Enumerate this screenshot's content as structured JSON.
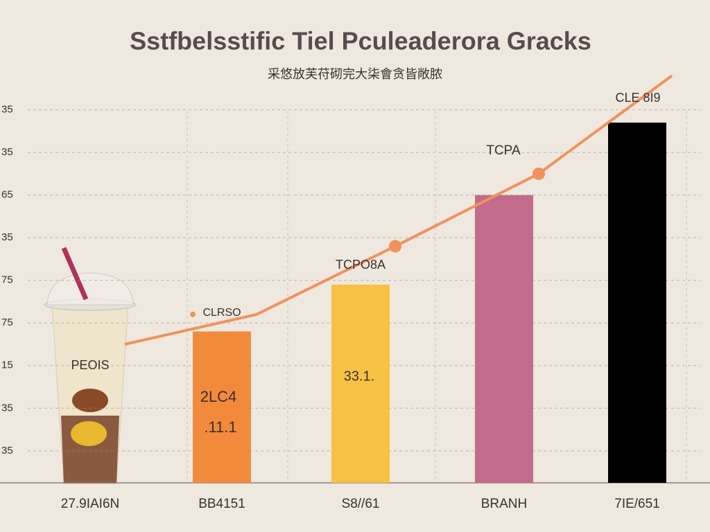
{
  "chart_data": {
    "type": "bar",
    "title": "Sstfbelsstific Tiel Pculeaderora Gracks",
    "subtitle": "采悠放芙苻砌完大柒會贪皆敞脓",
    "categories": [
      "27.9IAI6N",
      "BB4151",
      "S8//61",
      "BRANH",
      "7IE/651"
    ],
    "series": [
      {
        "type": "bar",
        "colors": [
          "#e8646c",
          "#f28a3c",
          "#f6c244",
          "#c26c8c"
        ],
        "values": [
          null,
          3.8,
          4.9,
          7.0,
          8.7
        ]
      },
      {
        "type": "line",
        "color": "#f0925c",
        "values": [
          3.5,
          4.2,
          5.8,
          7.5,
          9.8
        ]
      }
    ],
    "annotations": [
      "CLRSO",
      "2LC4",
      ".11.1",
      "TCPO8A",
      "33.1.",
      "TCPA",
      "CLE 8I9",
      "PEOIS"
    ],
    "ylim": [
      0.25,
      10
    ],
    "yticks": [
      {
        "value": 1,
        "label": "35"
      },
      {
        "value": 2,
        "label": "35"
      },
      {
        "value": 3,
        "label": "15"
      },
      {
        "value": 4,
        "label": "75"
      },
      {
        "value": 5,
        "label": "75"
      },
      {
        "value": 6,
        "label": "35"
      },
      {
        "value": 7,
        "label": "65"
      },
      {
        "value": 8,
        "label": "35"
      },
      {
        "value": 9,
        "label": "35"
      }
    ],
    "grid": true
  }
}
